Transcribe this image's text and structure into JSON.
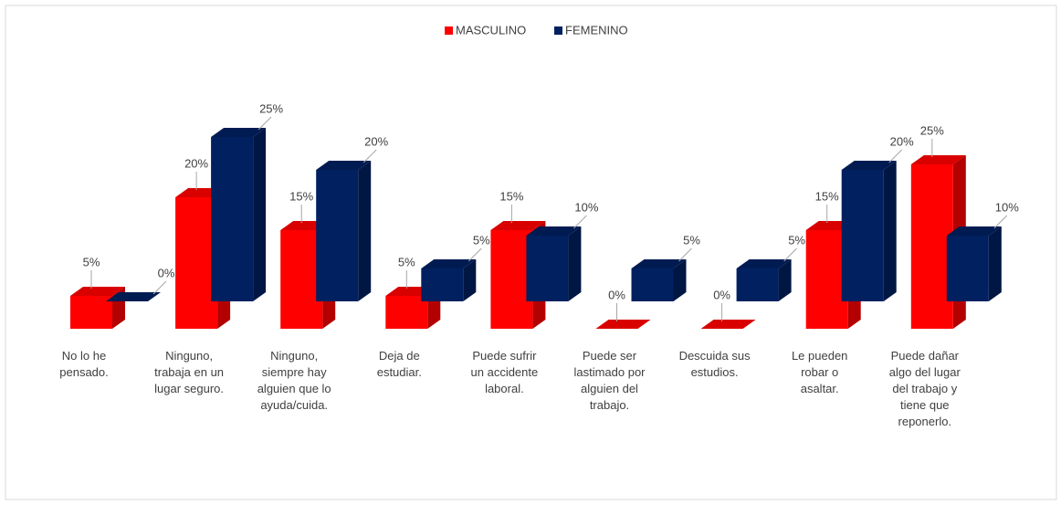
{
  "chart_data": {
    "type": "bar3d",
    "categories": [
      "No lo he\npensado.",
      "Ninguno,\ntrabaja en un\nlugar seguro.",
      "Ninguno,\nsiempre hay\nalguien que lo\nayuda/cuida.",
      "Deja de\nestudiar.",
      "Puede sufrir\nun accidente\nlaboral.",
      "Puede ser\nlastimado por\nalguien del\ntrabajo.",
      "Descuida sus\nestudios.",
      "Le pueden\nrobar o\nasaltar.",
      "Puede dañar\nalgo del lugar\ndel trabajo y\ntiene que\nreponerlo."
    ],
    "series": [
      {
        "name": "MASCULINO",
        "color": "#ff0000",
        "values": [
          5,
          20,
          15,
          5,
          15,
          0,
          0,
          15,
          25
        ],
        "value_labels": [
          "5%",
          "20%",
          "15%",
          "5%",
          "15%",
          "0%",
          "0%",
          "15%",
          "25%"
        ]
      },
      {
        "name": "FEMENINO",
        "color": "#002060",
        "values": [
          0,
          25,
          20,
          5,
          10,
          5,
          5,
          20,
          10
        ],
        "value_labels": [
          "0%",
          "25%",
          "20%",
          "5%",
          "10%",
          "5%",
          "5%",
          "20%",
          "10%"
        ]
      }
    ],
    "legend": "top"
  }
}
